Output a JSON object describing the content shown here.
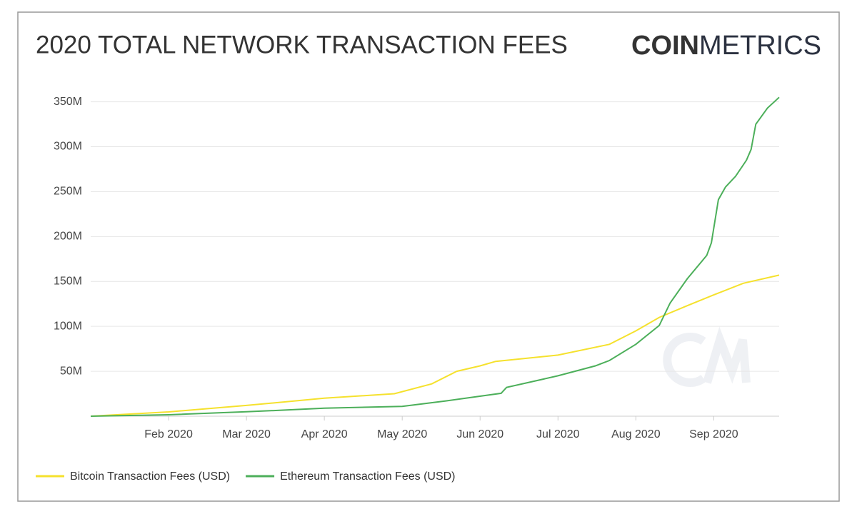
{
  "brand": {
    "bold": "COIN",
    "light": "METRICS"
  },
  "chart_data": {
    "type": "line",
    "title": "2020 TOTAL NETWORK TRANSACTION FEES",
    "xlim": [
      1,
      9.84
    ],
    "xticks": [
      {
        "value": 2,
        "label": "Feb 2020"
      },
      {
        "value": 3,
        "label": "Mar 2020"
      },
      {
        "value": 4,
        "label": "Apr 2020"
      },
      {
        "value": 5,
        "label": "May 2020"
      },
      {
        "value": 6,
        "label": "Jun 2020"
      },
      {
        "value": 7,
        "label": "Jul 2020"
      },
      {
        "value": 8,
        "label": "Aug 2020"
      },
      {
        "value": 9,
        "label": "Sep 2020"
      }
    ],
    "ylim": [
      0,
      360
    ],
    "yticks": [
      {
        "value": 50,
        "label": "50M"
      },
      {
        "value": 100,
        "label": "100M"
      },
      {
        "value": 150,
        "label": "150M"
      },
      {
        "value": 200,
        "label": "200M"
      },
      {
        "value": 250,
        "label": "250M"
      },
      {
        "value": 300,
        "label": "300M"
      },
      {
        "value": 350,
        "label": "350M"
      }
    ],
    "grid": true,
    "series": [
      {
        "name": "Bitcoin Transaction Fees (USD)",
        "color": "#f5e12d",
        "x": [
          1,
          2,
          3,
          4,
          4.9,
          5.38,
          5.7,
          6,
          6.2,
          7,
          7.66,
          8,
          8.3,
          8.66,
          9,
          9.38,
          9.84
        ],
        "values": [
          0,
          4.8,
          12,
          20,
          25,
          36,
          50,
          56,
          61,
          68,
          80,
          95,
          110,
          123,
          135,
          148,
          157
        ]
      },
      {
        "name": "Ethereum Transaction Fees (USD)",
        "color": "#4caf5a",
        "x": [
          1,
          2,
          3,
          3.4,
          4,
          5,
          5.56,
          6.27,
          6.34,
          7,
          7.48,
          7.66,
          8,
          8.3,
          8.44,
          8.66,
          8.91,
          8.97,
          9.06,
          9.15,
          9.28,
          9.42,
          9.48,
          9.54,
          9.69,
          9.84
        ],
        "values": [
          0,
          1.6,
          5,
          6.4,
          9,
          11,
          17,
          25.5,
          32,
          45,
          56,
          62,
          80,
          101,
          126,
          153,
          179,
          193,
          241,
          255,
          267,
          285,
          297,
          325,
          343,
          355
        ]
      }
    ]
  }
}
